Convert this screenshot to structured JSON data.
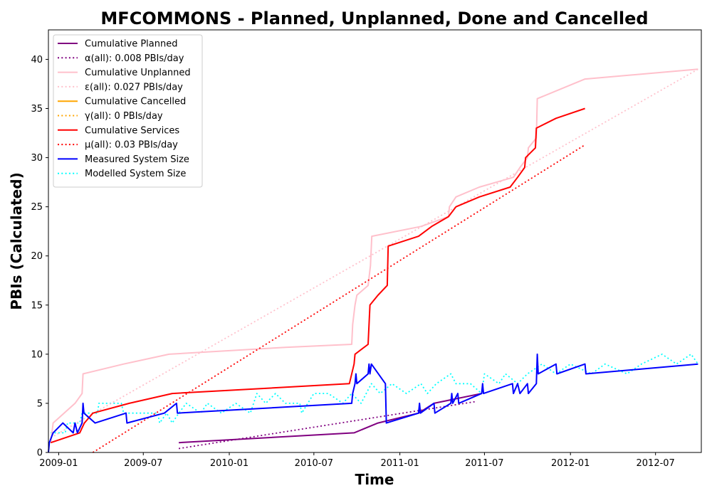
{
  "chart_data": {
    "type": "line",
    "title": "MFCOMMONS - Planned, Unplanned, Done  and Cancelled",
    "xlabel": "Time",
    "ylabel": "PBIs (Calculated)",
    "xlim": [
      "2008-12-10",
      "2012-10-07"
    ],
    "ylim": [
      0,
      43
    ],
    "x_ticks": [
      {
        "date": "2009-01-01",
        "label": "2009-01"
      },
      {
        "date": "2009-07-01",
        "label": "2009-07"
      },
      {
        "date": "2010-01-01",
        "label": "2010-01"
      },
      {
        "date": "2010-07-01",
        "label": "2010-07"
      },
      {
        "date": "2011-01-01",
        "label": "2011-01"
      },
      {
        "date": "2011-07-01",
        "label": "2011-07"
      },
      {
        "date": "2012-01-01",
        "label": "2012-01"
      },
      {
        "date": "2012-07-01",
        "label": "2012-07"
      }
    ],
    "y_ticks": [
      0,
      5,
      10,
      15,
      20,
      25,
      30,
      35,
      40
    ],
    "grid": false,
    "legend_position": "top-left",
    "series": [
      {
        "name": "Cumulative Planned",
        "style": "solid",
        "color": "#800080",
        "points": [
          [
            "2009-09-15",
            1
          ],
          [
            "2010-09-25",
            2
          ],
          [
            "2010-11-15",
            3
          ],
          [
            "2011-02-10",
            4
          ],
          [
            "2011-03-15",
            5
          ],
          [
            "2011-06-25",
            6
          ]
        ]
      },
      {
        "name": "α(all): 0.008 PBIs/day",
        "style": "dotted",
        "color": "#800080",
        "points": [
          [
            "2009-09-15",
            0.4
          ],
          [
            "2011-06-15",
            5.2
          ]
        ]
      },
      {
        "name": "Cumulative Unplanned",
        "style": "solid",
        "color": "#ffc0cb",
        "points": [
          [
            "2008-12-15",
            1
          ],
          [
            "2008-12-20",
            3
          ],
          [
            "2009-02-05",
            5
          ],
          [
            "2009-02-20",
            6
          ],
          [
            "2009-02-22",
            8
          ],
          [
            "2009-05-20",
            9
          ],
          [
            "2009-08-25",
            10
          ],
          [
            "2010-05-01",
            10.7
          ],
          [
            "2010-09-20",
            11
          ],
          [
            "2010-09-22",
            13
          ],
          [
            "2010-09-27",
            15
          ],
          [
            "2010-10-01",
            16
          ],
          [
            "2010-10-25",
            17
          ],
          [
            "2010-10-30",
            19
          ],
          [
            "2010-11-02",
            22
          ],
          [
            "2011-02-15",
            23
          ],
          [
            "2011-04-15",
            24
          ],
          [
            "2011-04-17",
            25
          ],
          [
            "2011-05-01",
            26
          ],
          [
            "2011-06-20",
            27
          ],
          [
            "2011-09-01",
            28
          ],
          [
            "2011-09-15",
            29
          ],
          [
            "2011-10-01",
            30
          ],
          [
            "2011-10-03",
            31
          ],
          [
            "2011-10-20",
            32
          ],
          [
            "2011-10-22",
            36
          ],
          [
            "2012-02-01",
            38
          ],
          [
            "2012-09-30",
            39
          ]
        ]
      },
      {
        "name": "ε(all): 0.027 PBIs/day",
        "style": "dotted",
        "color": "#ffc0cb",
        "points": [
          [
            "2008-12-15",
            1.5
          ],
          [
            "2012-09-30",
            39
          ]
        ]
      },
      {
        "name": "Cumulative Cancelled",
        "style": "solid",
        "color": "#ffa500",
        "points": []
      },
      {
        "name": "γ(all): 0 PBIs/day",
        "style": "dotted",
        "color": "#ffa500",
        "points": []
      },
      {
        "name": "Cumulative Services",
        "style": "solid",
        "color": "#ff0000",
        "points": [
          [
            "2008-12-15",
            1
          ],
          [
            "2009-02-15",
            2
          ],
          [
            "2009-02-25",
            3
          ],
          [
            "2009-03-15",
            4
          ],
          [
            "2009-06-01",
            5
          ],
          [
            "2009-09-01",
            6
          ],
          [
            "2010-09-15",
            7
          ],
          [
            "2010-09-25",
            9
          ],
          [
            "2010-09-27",
            10
          ],
          [
            "2010-10-25",
            11
          ],
          [
            "2010-10-27",
            13
          ],
          [
            "2010-10-29",
            15
          ],
          [
            "2010-11-15",
            16
          ],
          [
            "2010-12-05",
            17
          ],
          [
            "2010-12-07",
            21
          ],
          [
            "2011-02-10",
            22
          ],
          [
            "2011-03-10",
            23
          ],
          [
            "2011-04-15",
            24
          ],
          [
            "2011-05-01",
            25
          ],
          [
            "2011-06-20",
            26
          ],
          [
            "2011-08-25",
            27
          ],
          [
            "2011-09-10",
            28
          ],
          [
            "2011-09-25",
            29
          ],
          [
            "2011-09-27",
            30
          ],
          [
            "2011-10-18",
            31
          ],
          [
            "2011-10-20",
            33
          ],
          [
            "2011-12-01",
            34
          ],
          [
            "2012-02-01",
            35
          ]
        ]
      },
      {
        "name": "μ(all): 0.03 PBIs/day",
        "style": "dotted",
        "color": "#ff0000",
        "points": [
          [
            "2009-03-15",
            0
          ],
          [
            "2012-02-01",
            31.3
          ]
        ]
      },
      {
        "name": "Measured System Size",
        "style": "solid",
        "color": "#0000ff",
        "points": [
          [
            "2008-12-10",
            0
          ],
          [
            "2008-12-12",
            1
          ],
          [
            "2008-12-20",
            2
          ],
          [
            "2009-01-10",
            3
          ],
          [
            "2009-02-01",
            2
          ],
          [
            "2009-02-05",
            3
          ],
          [
            "2009-02-10",
            2
          ],
          [
            "2009-02-20",
            3
          ],
          [
            "2009-02-22",
            5
          ],
          [
            "2009-02-24",
            4
          ],
          [
            "2009-03-20",
            3
          ],
          [
            "2009-05-25",
            4
          ],
          [
            "2009-05-27",
            3
          ],
          [
            "2009-08-15",
            4
          ],
          [
            "2009-09-10",
            5
          ],
          [
            "2009-09-12",
            4
          ],
          [
            "2010-09-20",
            5
          ],
          [
            "2010-09-22",
            6
          ],
          [
            "2010-09-27",
            7
          ],
          [
            "2010-09-29",
            8
          ],
          [
            "2010-10-01",
            7
          ],
          [
            "2010-10-25",
            8
          ],
          [
            "2010-10-27",
            9
          ],
          [
            "2010-10-29",
            8
          ],
          [
            "2010-11-01",
            9
          ],
          [
            "2010-12-01",
            7
          ],
          [
            "2010-12-03",
            3
          ],
          [
            "2011-02-10",
            4
          ],
          [
            "2011-02-12",
            5
          ],
          [
            "2011-02-14",
            4
          ],
          [
            "2011-03-15",
            5
          ],
          [
            "2011-03-17",
            4
          ],
          [
            "2011-04-20",
            5
          ],
          [
            "2011-04-22",
            6
          ],
          [
            "2011-04-24",
            5
          ],
          [
            "2011-05-05",
            6
          ],
          [
            "2011-05-07",
            5
          ],
          [
            "2011-06-25",
            6
          ],
          [
            "2011-06-27",
            7
          ],
          [
            "2011-06-29",
            6
          ],
          [
            "2011-08-30",
            7
          ],
          [
            "2011-09-01",
            6
          ],
          [
            "2011-09-10",
            7
          ],
          [
            "2011-09-15",
            6
          ],
          [
            "2011-10-01",
            7
          ],
          [
            "2011-10-03",
            6
          ],
          [
            "2011-10-20",
            7
          ],
          [
            "2011-10-22",
            10
          ],
          [
            "2011-10-24",
            8
          ],
          [
            "2011-12-01",
            9
          ],
          [
            "2011-12-03",
            8
          ],
          [
            "2012-02-01",
            9
          ],
          [
            "2012-02-03",
            8
          ],
          [
            "2012-09-30",
            9
          ]
        ]
      },
      {
        "name": "Modelled System Size",
        "style": "dotted",
        "color": "#00ffff",
        "points": [
          [
            "2008-12-15",
            2
          ],
          [
            "2009-01-15",
            2
          ],
          [
            "2009-01-20",
            3
          ],
          [
            "2009-02-15",
            3
          ],
          [
            "2009-02-20",
            4
          ],
          [
            "2009-03-25",
            4
          ],
          [
            "2009-03-28",
            5
          ],
          [
            "2009-05-15",
            5
          ],
          [
            "2009-05-20",
            4
          ],
          [
            "2009-08-01",
            4
          ],
          [
            "2009-08-05",
            3
          ],
          [
            "2009-08-20",
            4
          ],
          [
            "2009-09-01",
            3
          ],
          [
            "2009-09-15",
            4
          ],
          [
            "2009-10-01",
            5
          ],
          [
            "2009-11-01",
            4
          ],
          [
            "2009-11-15",
            5
          ],
          [
            "2009-12-15",
            4
          ],
          [
            "2010-01-15",
            5
          ],
          [
            "2010-02-15",
            4
          ],
          [
            "2010-03-01",
            6
          ],
          [
            "2010-03-20",
            5
          ],
          [
            "2010-04-10",
            6
          ],
          [
            "2010-05-01",
            5
          ],
          [
            "2010-06-01",
            5
          ],
          [
            "2010-06-05",
            4
          ],
          [
            "2010-07-01",
            6
          ],
          [
            "2010-08-01",
            6
          ],
          [
            "2010-09-01",
            5
          ],
          [
            "2010-09-20",
            6
          ],
          [
            "2010-10-10",
            5
          ],
          [
            "2010-11-01",
            7
          ],
          [
            "2010-11-20",
            6
          ],
          [
            "2010-12-15",
            7
          ],
          [
            "2011-01-15",
            6
          ],
          [
            "2011-02-15",
            7
          ],
          [
            "2011-03-01",
            6
          ],
          [
            "2011-03-20",
            7
          ],
          [
            "2011-04-20",
            8
          ],
          [
            "2011-05-01",
            7
          ],
          [
            "2011-06-01",
            7
          ],
          [
            "2011-06-25",
            6
          ],
          [
            "2011-07-01",
            8
          ],
          [
            "2011-08-01",
            7
          ],
          [
            "2011-08-15",
            8
          ],
          [
            "2011-09-10",
            7
          ],
          [
            "2011-10-01",
            8
          ],
          [
            "2011-11-01",
            9
          ],
          [
            "2011-12-01",
            8
          ],
          [
            "2012-01-01",
            9
          ],
          [
            "2012-02-15",
            8
          ],
          [
            "2012-03-15",
            9
          ],
          [
            "2012-05-01",
            8
          ],
          [
            "2012-06-01",
            9
          ],
          [
            "2012-07-15",
            10
          ],
          [
            "2012-08-15",
            9
          ],
          [
            "2012-09-15",
            10
          ],
          [
            "2012-09-30",
            9
          ]
        ]
      }
    ]
  }
}
